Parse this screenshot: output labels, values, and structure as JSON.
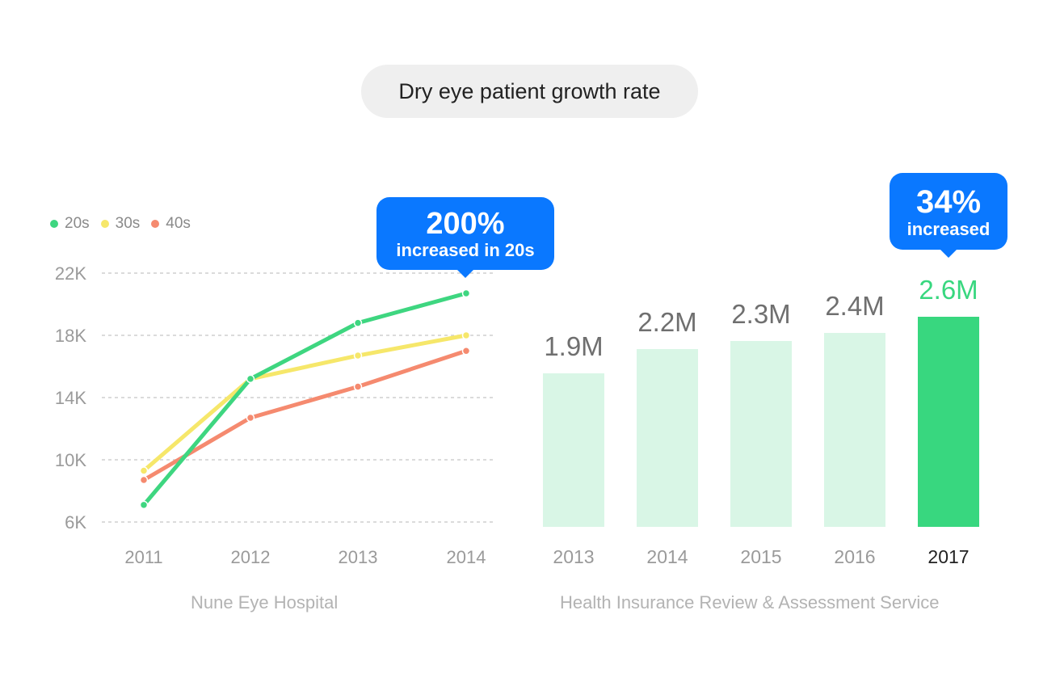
{
  "title": "Dry eye patient growth rate",
  "colors": {
    "series_20s": "#3ed680",
    "series_30s": "#f6e76a",
    "series_40s": "#f58a6f",
    "bar_light": "#d9f6e6",
    "bar_highlight": "#38d77f",
    "callout_bg": "#0a78ff"
  },
  "legend": [
    {
      "label": "20s",
      "color": "#3ed680"
    },
    {
      "label": "30s",
      "color": "#f6e76a"
    },
    {
      "label": "40s",
      "color": "#f58a6f"
    }
  ],
  "callouts": {
    "line": {
      "big": "200%",
      "small": "increased in 20s"
    },
    "bar": {
      "big": "34%",
      "small": "increased"
    }
  },
  "sources": {
    "line": "Nune Eye Hospital",
    "bar": "Health Insurance Review & Assessment Service"
  },
  "chart_data": [
    {
      "type": "line",
      "title": "",
      "xlabel": "",
      "ylabel": "",
      "categories": [
        "2011",
        "2012",
        "2013",
        "2014"
      ],
      "y_ticks": [
        {
          "value": 6000,
          "label": "6K"
        },
        {
          "value": 10000,
          "label": "10K"
        },
        {
          "value": 14000,
          "label": "14K"
        },
        {
          "value": 18000,
          "label": "18K"
        },
        {
          "value": 22000,
          "label": "22K"
        }
      ],
      "ylim": [
        6000,
        22000
      ],
      "grid": true,
      "series": [
        {
          "name": "20s",
          "color": "#3ed680",
          "values": [
            7100,
            15200,
            18800,
            20700
          ]
        },
        {
          "name": "30s",
          "color": "#f6e76a",
          "values": [
            9300,
            15200,
            16700,
            18000
          ]
        },
        {
          "name": "40s",
          "color": "#f58a6f",
          "values": [
            8700,
            12700,
            14700,
            17000
          ]
        }
      ],
      "source": "Nune Eye Hospital"
    },
    {
      "type": "bar",
      "title": "",
      "xlabel": "",
      "ylabel": "",
      "categories": [
        "2013",
        "2014",
        "2015",
        "2016",
        "2017"
      ],
      "values": [
        1.9,
        2.2,
        2.3,
        2.4,
        2.6
      ],
      "value_labels": [
        "1.9M",
        "2.2M",
        "2.3M",
        "2.4M",
        "2.6M"
      ],
      "unit": "M",
      "highlight_index": 4,
      "ylim": [
        0,
        2.6
      ],
      "source": "Health Insurance Review & Assessment Service"
    }
  ]
}
